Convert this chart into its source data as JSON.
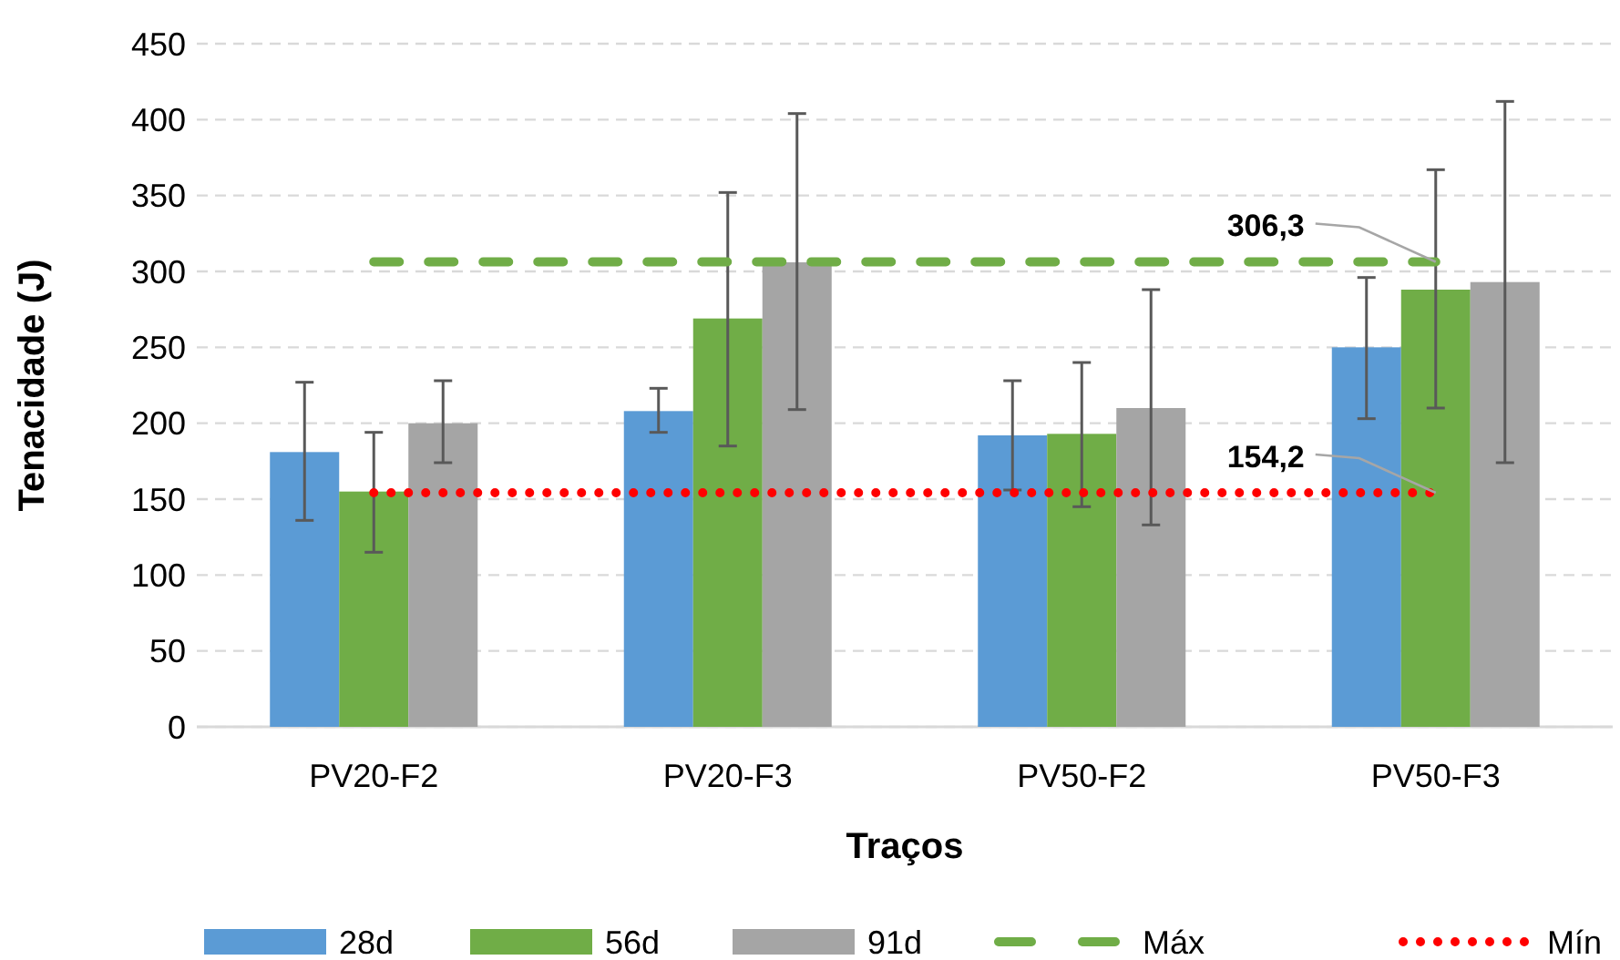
{
  "chart_data": {
    "type": "bar",
    "xlabel": "Traços",
    "ylabel": "Tenacidade (J)",
    "categories": [
      "PV20-F2",
      "PV20-F3",
      "PV50-F2",
      "PV50-F3"
    ],
    "series": [
      {
        "name": "28d",
        "color": "#5b9bd5",
        "values": [
          181,
          208,
          192,
          250
        ],
        "errors": [
          [
            136,
            227
          ],
          [
            194,
            223
          ],
          [
            156,
            228
          ],
          [
            203,
            296
          ]
        ]
      },
      {
        "name": "56d",
        "color": "#70ad47",
        "values": [
          155,
          269,
          193,
          288
        ],
        "errors": [
          [
            115,
            194
          ],
          [
            185,
            352
          ],
          [
            145,
            240
          ],
          [
            210,
            367
          ]
        ]
      },
      {
        "name": "91d",
        "color": "#a5a5a5",
        "values": [
          200,
          306,
          210,
          293
        ],
        "errors": [
          [
            174,
            228
          ],
          [
            209,
            404
          ],
          [
            133,
            288
          ],
          [
            174,
            412
          ]
        ]
      },
      {
        "name": "Máx",
        "type": "line",
        "color": "#70ad47",
        "line_style": "dashed",
        "values": [
          306.3,
          306.3,
          306.3,
          306.3
        ],
        "value_labels": [
          null,
          null,
          null,
          "306,3"
        ]
      },
      {
        "name": "Mín",
        "type": "line",
        "color": "#ff0000",
        "line_style": "dotted",
        "values": [
          154.2,
          154.2,
          154.2,
          154.2
        ],
        "value_labels": [
          null,
          null,
          null,
          "154,2"
        ]
      }
    ],
    "ylim": [
      0,
      450
    ],
    "yticks": [
      0,
      50,
      100,
      150,
      200,
      250,
      300,
      350,
      400,
      450
    ],
    "grid": "y",
    "legend": "bottom"
  }
}
